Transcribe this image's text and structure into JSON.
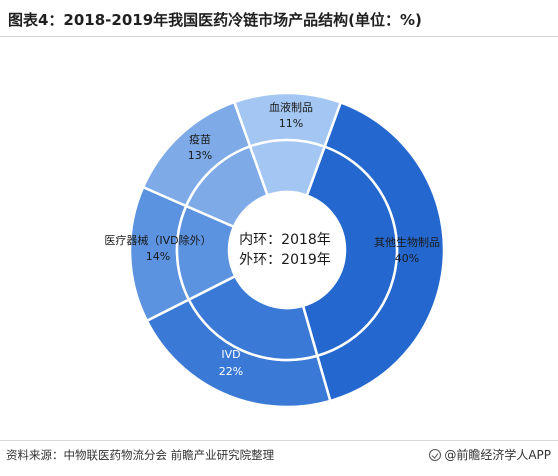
{
  "header": {
    "title": "图表4：2018-2019年我国医药冷链市场产品结构(单位：%)"
  },
  "chart_data": {
    "type": "pie",
    "categories": [
      "其他生物制品",
      "IVD",
      "医疗器械（IVD除外）",
      "疫苗",
      "血液制品"
    ],
    "series": [
      {
        "name": "2018年",
        "values": [
          40,
          22,
          14,
          13,
          11
        ]
      },
      {
        "name": "2019年",
        "values": [
          40,
          22,
          14,
          13,
          11
        ]
      }
    ],
    "labels": [
      "其他生物制品",
      "IVD",
      "医疗器械（IVD除外）",
      "疫苗",
      "血液制品"
    ],
    "value_labels": [
      "40%",
      "22%",
      "14%",
      "13%",
      "11%"
    ],
    "center_text": [
      "内环：2018年",
      "外环：2019年"
    ],
    "colors": [
      "#2468cf",
      "#3a7ad6",
      "#5b93e0",
      "#7eaae8",
      "#a3c6f2"
    ],
    "legend": "none"
  },
  "footer": {
    "source": "资料来源：中物联医药物流分会 前瞻产业研究院整理",
    "brand": "@前瞻经济学人APP"
  }
}
